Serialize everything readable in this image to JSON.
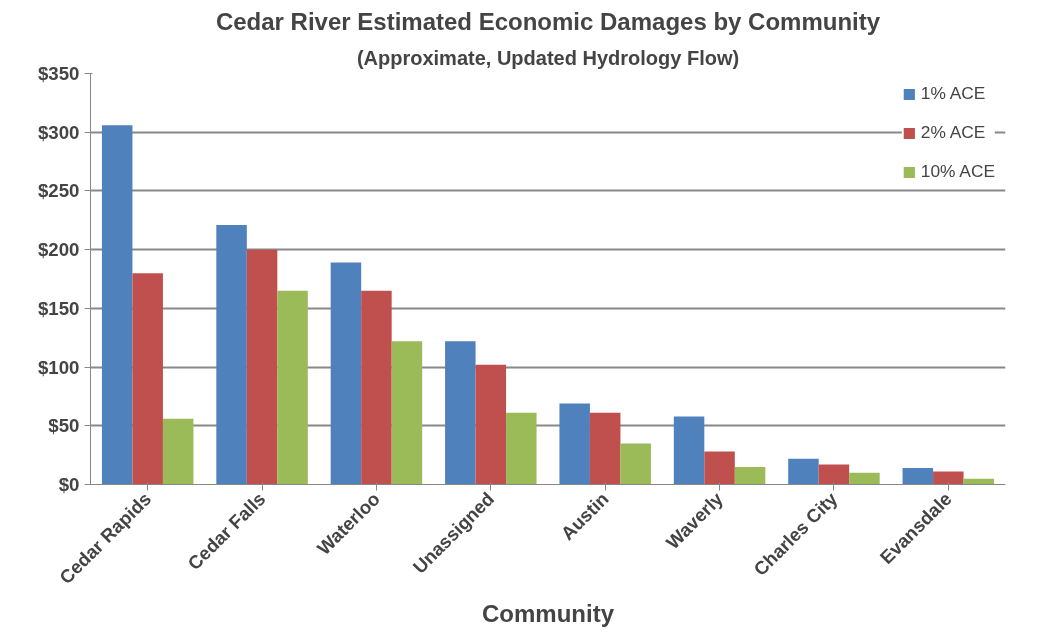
{
  "chart_data": {
    "type": "bar",
    "title": "Cedar River Estimated Economic Damages by Community",
    "subtitle": "(Approximate, Updated Hydrology Flow)",
    "xlabel": "Community",
    "categories": [
      "Cedar Rapids",
      "Cedar Falls",
      "Waterloo",
      "Unassigned",
      "Austin",
      "Waverly",
      "Charles City",
      "Evansdale"
    ],
    "series": [
      {
        "name": "1% ACE",
        "color": "#4f81bd",
        "values": [
          306,
          221,
          189,
          122,
          69,
          58,
          22,
          14
        ]
      },
      {
        "name": "2% ACE",
        "color": "#c0504d",
        "values": [
          180,
          200,
          165,
          102,
          61,
          28,
          17,
          11
        ]
      },
      {
        "name": "10% ACE",
        "color": "#9bbb59",
        "values": [
          56,
          165,
          122,
          61,
          35,
          15,
          10,
          5
        ]
      }
    ],
    "ylim": [
      0,
      350
    ],
    "yticks": [
      {
        "value": 0,
        "label": "$0"
      },
      {
        "value": 50,
        "label": "$50"
      },
      {
        "value": 100,
        "label": "$100"
      },
      {
        "value": 150,
        "label": "$150"
      },
      {
        "value": 200,
        "label": "$200"
      },
      {
        "value": 250,
        "label": "$250"
      },
      {
        "value": 300,
        "label": "$300"
      },
      {
        "value": 350,
        "label": "$350"
      }
    ],
    "grid": "y",
    "legend": "top right"
  }
}
